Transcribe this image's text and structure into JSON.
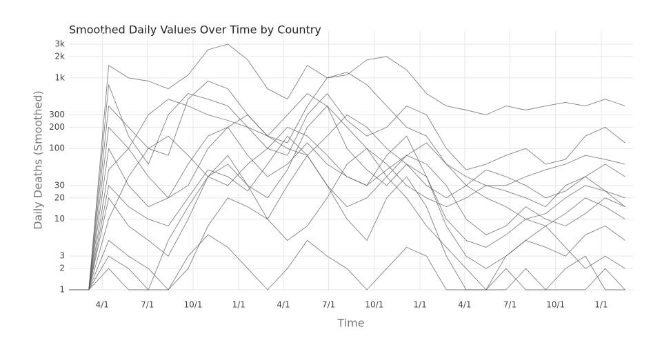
{
  "chart_data": {
    "type": "line",
    "title": "Smoothed Daily Values Over Time by Country",
    "xlabel": "Time",
    "ylabel": "Daily Deaths (Smoothed)",
    "log_y": true,
    "grid": true,
    "x": [
      0,
      40,
      80,
      120,
      160,
      200,
      240,
      280,
      320,
      360,
      400,
      440,
      480,
      520,
      560,
      600,
      640,
      680,
      720,
      760,
      800,
      840,
      880,
      920,
      960,
      1000,
      1040,
      1080,
      1120
    ],
    "xlim": [
      0,
      1136
    ],
    "xticks": [
      {
        "value": 67,
        "label": "4/1"
      },
      {
        "value": 158,
        "label": "7/1"
      },
      {
        "value": 250,
        "label": "10/1"
      },
      {
        "value": 342,
        "label": "1/1"
      },
      {
        "value": 432,
        "label": "4/1"
      },
      {
        "value": 523,
        "label": "7/1"
      },
      {
        "value": 615,
        "label": "10/1"
      },
      {
        "value": 707,
        "label": "1/1"
      },
      {
        "value": 797,
        "label": "4/1"
      },
      {
        "value": 888,
        "label": "7/1"
      },
      {
        "value": 980,
        "label": "10/1"
      },
      {
        "value": 1072,
        "label": "1/1"
      }
    ],
    "ylim": [
      1,
      4600
    ],
    "yticks": [
      1,
      2,
      3,
      10,
      20,
      30,
      100,
      200,
      300,
      {
        "value": 1000,
        "label": "1k"
      },
      {
        "value": 2000,
        "label": "2k"
      },
      {
        "value": 3000,
        "label": "3k"
      }
    ],
    "series": [
      {
        "color": "#555555",
        "values": [
          1,
          1,
          1500,
          1000,
          900,
          700,
          1100,
          2500,
          3000,
          1800,
          700,
          500,
          1500,
          1000,
          1100,
          1800,
          2000,
          1300,
          600,
          400,
          350,
          300,
          400,
          350,
          400,
          450,
          400,
          500,
          400
        ]
      },
      {
        "color": "#555555",
        "values": [
          1,
          1,
          800,
          150,
          60,
          300,
          600,
          500,
          400,
          200,
          100,
          80,
          300,
          600,
          250,
          150,
          200,
          400,
          300,
          100,
          50,
          60,
          80,
          100,
          60,
          70,
          150,
          200,
          120
        ]
      },
      {
        "color": "#555555",
        "values": [
          1,
          1,
          100,
          30,
          15,
          20,
          60,
          150,
          200,
          80,
          40,
          60,
          120,
          60,
          40,
          30,
          80,
          150,
          40,
          10,
          5,
          4,
          6,
          10,
          8,
          12,
          20,
          15,
          10
        ]
      },
      {
        "color": "#555555",
        "values": [
          1,
          1,
          20,
          8,
          5,
          3,
          10,
          40,
          60,
          30,
          20,
          50,
          200,
          400,
          100,
          50,
          30,
          60,
          40,
          8,
          3,
          2,
          3,
          5,
          4,
          3,
          6,
          8,
          5
        ]
      },
      {
        "color": "#555555",
        "values": [
          1,
          1,
          5,
          3,
          2,
          1,
          2,
          8,
          20,
          15,
          10,
          30,
          80,
          30,
          10,
          5,
          20,
          40,
          15,
          3,
          1,
          1,
          2,
          1,
          1,
          2,
          3,
          1,
          1
        ]
      },
      {
        "color": "#555555",
        "values": [
          1,
          1,
          50,
          100,
          300,
          500,
          400,
          300,
          250,
          200,
          150,
          300,
          600,
          400,
          200,
          100,
          60,
          30,
          20,
          15,
          20,
          30,
          25,
          20,
          15,
          30,
          40,
          25,
          20
        ]
      },
      {
        "color": "#555555",
        "values": [
          1,
          1,
          200,
          100,
          40,
          20,
          30,
          100,
          200,
          300,
          150,
          100,
          80,
          150,
          300,
          200,
          100,
          60,
          30,
          20,
          30,
          50,
          40,
          30,
          20,
          25,
          40,
          60,
          40
        ]
      },
      {
        "color": "#555555",
        "values": [
          1,
          1,
          3,
          2,
          1,
          5,
          15,
          40,
          80,
          30,
          10,
          5,
          8,
          20,
          60,
          100,
          40,
          20,
          8,
          4,
          2,
          1,
          3,
          5,
          8,
          4,
          2,
          3,
          2
        ]
      },
      {
        "color": "#555555",
        "values": [
          1,
          1,
          10,
          40,
          100,
          150,
          80,
          40,
          30,
          60,
          100,
          200,
          150,
          80,
          40,
          30,
          50,
          80,
          120,
          60,
          30,
          20,
          15,
          10,
          12,
          20,
          30,
          25,
          15
        ]
      },
      {
        "color": "#555555",
        "values": [
          1,
          1,
          2,
          1,
          1,
          1,
          3,
          6,
          4,
          2,
          1,
          2,
          5,
          3,
          2,
          1,
          2,
          4,
          3,
          1,
          1,
          1,
          1,
          2,
          1,
          1,
          1,
          2,
          1
        ]
      },
      {
        "color": "#555555",
        "values": [
          1,
          1,
          400,
          200,
          100,
          80,
          500,
          900,
          700,
          300,
          150,
          120,
          400,
          1000,
          1200,
          800,
          400,
          200,
          150,
          60,
          40,
          30,
          30,
          40,
          50,
          60,
          80,
          70,
          60
        ]
      },
      {
        "color": "#555555",
        "values": [
          1,
          1,
          30,
          15,
          10,
          8,
          20,
          50,
          40,
          25,
          60,
          150,
          80,
          30,
          15,
          20,
          40,
          80,
          60,
          30,
          10,
          6,
          8,
          15,
          10,
          8,
          12,
          20,
          15
        ]
      }
    ]
  }
}
